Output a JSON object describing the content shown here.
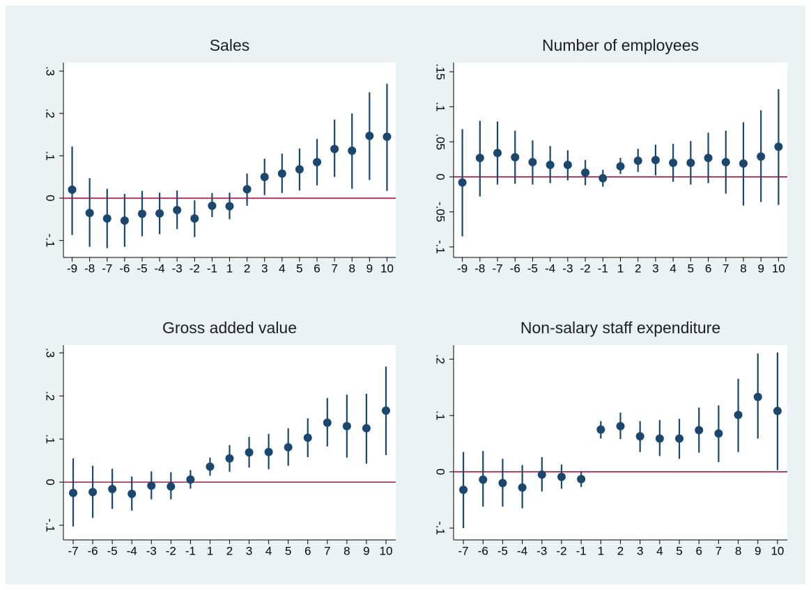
{
  "chart_data": [
    {
      "type": "errorbar",
      "title": "Sales",
      "color": "#1a476f",
      "reference_line": 0,
      "reference_color": "#b0163c",
      "categories": [
        -9,
        -8,
        -7,
        -6,
        -5,
        -4,
        -3,
        -2,
        -1,
        1,
        2,
        3,
        4,
        5,
        6,
        7,
        8,
        9,
        10
      ],
      "values": [
        0.02,
        -0.035,
        -0.048,
        -0.053,
        -0.037,
        -0.036,
        -0.028,
        -0.048,
        -0.018,
        -0.019,
        0.021,
        0.05,
        0.058,
        0.068,
        0.085,
        0.116,
        0.112,
        0.147,
        0.145
      ],
      "lower": [
        -0.087,
        -0.115,
        -0.118,
        -0.115,
        -0.09,
        -0.085,
        -0.073,
        -0.092,
        -0.045,
        -0.05,
        -0.018,
        0.007,
        0.012,
        0.018,
        0.03,
        0.05,
        0.022,
        0.043,
        0.017
      ],
      "upper": [
        0.122,
        0.047,
        0.022,
        0.01,
        0.017,
        0.013,
        0.018,
        -0.005,
        0.012,
        0.013,
        0.058,
        0.093,
        0.105,
        0.117,
        0.14,
        0.185,
        0.2,
        0.25,
        0.27
      ],
      "ylim": [
        -0.14,
        0.32
      ],
      "yticks": [
        {
          "value": -0.1,
          "label": "-.1"
        },
        0,
        {
          "value": 0.1,
          "label": ".1"
        },
        {
          "value": 0.2,
          "label": ".2"
        },
        {
          "value": 0.3,
          "label": ".3"
        }
      ]
    },
    {
      "type": "errorbar",
      "title": "Number of employees",
      "color": "#1a476f",
      "reference_line": 0,
      "reference_color": "#b0163c",
      "categories": [
        -9,
        -8,
        -7,
        -6,
        -5,
        -4,
        -3,
        -2,
        -1,
        1,
        2,
        3,
        4,
        5,
        6,
        7,
        8,
        9,
        10
      ],
      "values": [
        -0.008,
        0.027,
        0.034,
        0.028,
        0.021,
        0.017,
        0.017,
        0.006,
        -0.002,
        0.015,
        0.023,
        0.024,
        0.02,
        0.02,
        0.027,
        0.021,
        0.019,
        0.029,
        0.043
      ],
      "lower": [
        -0.085,
        -0.028,
        -0.011,
        -0.01,
        -0.011,
        -0.009,
        -0.005,
        -0.012,
        -0.014,
        0.004,
        0.007,
        0.002,
        -0.007,
        -0.011,
        -0.009,
        -0.024,
        -0.041,
        -0.036,
        -0.04
      ],
      "upper": [
        0.068,
        0.08,
        0.079,
        0.066,
        0.052,
        0.044,
        0.038,
        0.024,
        0.01,
        0.027,
        0.04,
        0.046,
        0.047,
        0.051,
        0.063,
        0.066,
        0.078,
        0.095,
        0.125
      ],
      "ylim": [
        -0.115,
        0.163
      ],
      "yticks": [
        {
          "value": -0.1,
          "label": "-.1"
        },
        {
          "value": -0.05,
          "label": "-.05"
        },
        0,
        {
          "value": 0.05,
          "label": ".05"
        },
        {
          "value": 0.1,
          "label": ".1"
        },
        {
          "value": 0.15,
          "label": ".15"
        }
      ]
    },
    {
      "type": "errorbar",
      "title": "Gross added value",
      "color": "#1a476f",
      "reference_line": 0,
      "reference_color": "#b0163c",
      "categories": [
        -7,
        -6,
        -5,
        -4,
        -3,
        -2,
        -1,
        1,
        2,
        3,
        4,
        5,
        6,
        7,
        8,
        9,
        10
      ],
      "values": [
        -0.025,
        -0.023,
        -0.016,
        -0.027,
        -0.008,
        -0.01,
        0.006,
        0.036,
        0.055,
        0.069,
        0.07,
        0.081,
        0.103,
        0.138,
        0.13,
        0.125,
        0.166
      ],
      "lower": [
        -0.103,
        -0.083,
        -0.062,
        -0.066,
        -0.04,
        -0.04,
        -0.015,
        0.015,
        0.024,
        0.034,
        0.03,
        0.038,
        0.058,
        0.083,
        0.057,
        0.043,
        0.063
      ],
      "upper": [
        0.055,
        0.038,
        0.031,
        0.013,
        0.025,
        0.023,
        0.028,
        0.057,
        0.086,
        0.105,
        0.112,
        0.125,
        0.148,
        0.195,
        0.203,
        0.205,
        0.268
      ],
      "ylim": [
        -0.134,
        0.318
      ],
      "yticks": [
        {
          "value": -0.1,
          "label": "-.1"
        },
        0,
        {
          "value": 0.1,
          "label": ".1"
        },
        {
          "value": 0.2,
          "label": ".2"
        },
        {
          "value": 0.3,
          "label": ".3"
        }
      ]
    },
    {
      "type": "errorbar",
      "title": "Non-salary staff expenditure",
      "color": "#1a476f",
      "reference_line": 0,
      "reference_color": "#b0163c",
      "categories": [
        -7,
        -6,
        -5,
        -4,
        -3,
        -2,
        -1,
        1,
        2,
        3,
        4,
        5,
        6,
        7,
        8,
        9,
        10
      ],
      "values": [
        -0.032,
        -0.014,
        -0.02,
        -0.028,
        -0.005,
        -0.009,
        -0.013,
        0.075,
        0.081,
        0.063,
        0.059,
        0.059,
        0.074,
        0.068,
        0.101,
        0.133,
        0.108
      ],
      "lower": [
        -0.1,
        -0.062,
        -0.062,
        -0.065,
        -0.035,
        -0.03,
        -0.027,
        0.059,
        0.058,
        0.035,
        0.028,
        0.023,
        0.034,
        0.017,
        0.035,
        0.059,
        0.003
      ],
      "upper": [
        0.035,
        0.037,
        0.023,
        0.012,
        0.026,
        0.013,
        0.001,
        0.09,
        0.105,
        0.09,
        0.092,
        0.094,
        0.114,
        0.118,
        0.165,
        0.21,
        0.212
      ],
      "ylim": [
        -0.121,
        0.225
      ],
      "yticks": [
        {
          "value": -0.1,
          "label": "-.1"
        },
        0,
        {
          "value": 0.1,
          "label": ".1"
        },
        {
          "value": 0.2,
          "label": ".2"
        }
      ]
    }
  ]
}
